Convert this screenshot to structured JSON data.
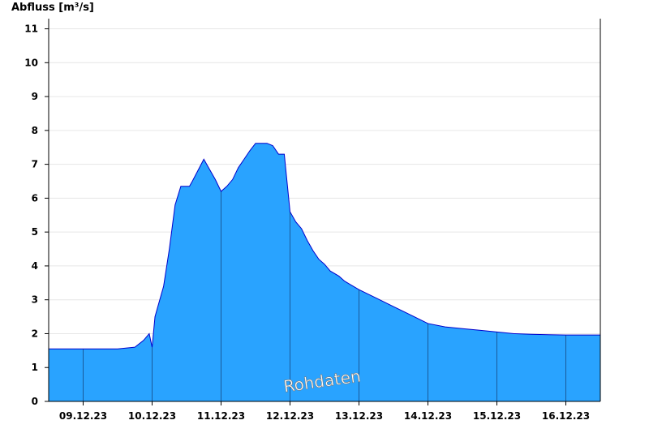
{
  "chart_data": {
    "type": "area",
    "ylabel": "Abfluss [m³/s]",
    "ylim": [
      0,
      11.3
    ],
    "yticks": [
      0,
      1,
      2,
      3,
      4,
      5,
      6,
      7,
      8,
      9,
      10,
      11
    ],
    "x_start": "2023-12-08 12:00",
    "x_end": "2023-12-16 12:00",
    "date_labels": [
      "09.12.23",
      "10.12.23",
      "11.12.23",
      "12.12.23",
      "13.12.23",
      "14.12.23",
      "15.12.23",
      "16.12.23"
    ],
    "grid": "horizontal",
    "day_separators": true,
    "watermark": "Rohdaten",
    "colors": {
      "fill": "#29a3ff",
      "line": "#0000cc",
      "separator": "#1a5a9a",
      "grid": "#e6e6e6"
    },
    "series": [
      {
        "x": [
          "2023-12-08 12:00",
          "2023-12-09 00:00",
          "2023-12-09 06:00",
          "2023-12-09 12:00",
          "2023-12-09 18:00",
          "2023-12-09 21:00",
          "2023-12-09 23:00",
          "2023-12-10 00:00",
          "2023-12-10 01:00",
          "2023-12-10 02:00",
          "2023-12-10 04:00",
          "2023-12-10 06:00",
          "2023-12-10 08:00",
          "2023-12-10 10:00",
          "2023-12-10 12:00",
          "2023-12-10 13:00",
          "2023-12-10 14:00",
          "2023-12-10 18:00",
          "2023-12-10 20:00",
          "2023-12-10 22:00",
          "2023-12-11 00:00",
          "2023-12-11 02:00",
          "2023-12-11 04:00",
          "2023-12-11 06:00",
          "2023-12-11 08:00",
          "2023-12-11 10:00",
          "2023-12-11 12:00",
          "2023-12-11 14:00",
          "2023-12-11 16:00",
          "2023-12-11 18:00",
          "2023-12-11 20:00",
          "2023-12-11 22:00",
          "2023-12-12 00:00",
          "2023-12-12 02:00",
          "2023-12-12 04:00",
          "2023-12-12 06:00",
          "2023-12-12 08:00",
          "2023-12-12 10:00",
          "2023-12-12 12:00",
          "2023-12-12 14:00",
          "2023-12-12 17:00",
          "2023-12-12 19:00",
          "2023-12-12 20:00",
          "2023-12-12 21:00",
          "2023-12-13 00:00",
          "2023-12-13 06:00",
          "2023-12-13 12:00",
          "2023-12-13 18:00",
          "2023-12-14 00:00",
          "2023-12-14 06:00",
          "2023-12-14 12:00",
          "2023-12-14 18:00",
          "2023-12-15 00:00",
          "2023-12-15 06:00",
          "2023-12-15 12:00",
          "2023-12-15 18:00",
          "2023-12-16 00:00",
          "2023-12-16 06:00",
          "2023-12-16 12:00"
        ],
        "values": [
          1.55,
          1.55,
          1.55,
          1.55,
          1.6,
          1.8,
          2.0,
          1.6,
          2.5,
          2.8,
          3.4,
          4.5,
          5.8,
          6.35,
          6.35,
          6.35,
          6.5,
          7.15,
          6.85,
          6.55,
          6.2,
          6.35,
          6.55,
          6.9,
          7.15,
          7.4,
          7.62,
          7.62,
          7.62,
          7.55,
          7.3,
          7.3,
          5.6,
          5.3,
          5.1,
          4.75,
          4.45,
          4.2,
          4.05,
          3.85,
          3.7,
          3.55,
          3.5,
          3.45,
          3.3,
          3.05,
          2.8,
          2.55,
          2.3,
          2.2,
          2.15,
          2.1,
          2.05,
          2.0,
          1.98,
          1.97,
          1.96,
          1.96,
          1.96
        ]
      }
    ]
  }
}
